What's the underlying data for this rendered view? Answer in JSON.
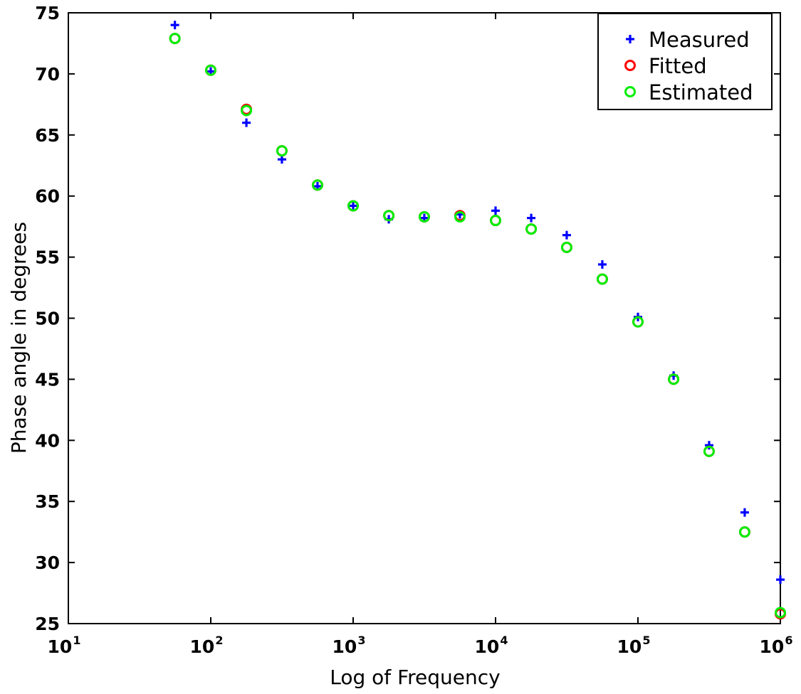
{
  "chart_data": {
    "type": "scatter",
    "xlabel": "Log of Frequency",
    "ylabel": "Phase angle in degrees",
    "xscale": "log",
    "xlim": [
      10,
      1000000
    ],
    "ylim": [
      25,
      75
    ],
    "grid": false,
    "legend_position": "top-right",
    "x_ticks": [
      {
        "base": "10",
        "exp": "1"
      },
      {
        "base": "10",
        "exp": "2"
      },
      {
        "base": "10",
        "exp": "3"
      },
      {
        "base": "10",
        "exp": "4"
      },
      {
        "base": "10",
        "exp": "5"
      },
      {
        "base": "10",
        "exp": "6"
      }
    ],
    "y_ticks": [
      "25",
      "30",
      "35",
      "40",
      "45",
      "50",
      "55",
      "60",
      "65",
      "70",
      "75"
    ],
    "x": [
      56,
      100,
      178,
      316,
      562,
      1000,
      1780,
      3160,
      5620,
      10000,
      17800,
      31600,
      56200,
      100000,
      178000,
      316000,
      562000,
      1000000
    ],
    "series": [
      {
        "name": "Measured",
        "marker": "plus",
        "color": "#0000ff",
        "values": [
          74.0,
          70.2,
          66.0,
          63.0,
          60.8,
          59.2,
          58.1,
          58.2,
          58.5,
          58.8,
          58.2,
          56.8,
          54.4,
          50.1,
          45.3,
          39.6,
          34.1,
          28.6
        ]
      },
      {
        "name": "Fitted",
        "marker": "circle",
        "color": "#ff0000",
        "values": [
          72.9,
          70.3,
          67.1,
          63.7,
          60.9,
          59.2,
          58.4,
          58.3,
          58.4,
          58.0,
          57.3,
          55.8,
          53.2,
          49.7,
          45.0,
          39.1,
          32.5,
          25.8
        ]
      },
      {
        "name": "Estimated",
        "marker": "circle",
        "color": "#00ee00",
        "values": [
          72.9,
          70.3,
          67.0,
          63.7,
          60.9,
          59.2,
          58.4,
          58.3,
          58.3,
          58.0,
          57.3,
          55.8,
          53.2,
          49.7,
          45.0,
          39.1,
          32.5,
          25.9
        ]
      }
    ]
  }
}
